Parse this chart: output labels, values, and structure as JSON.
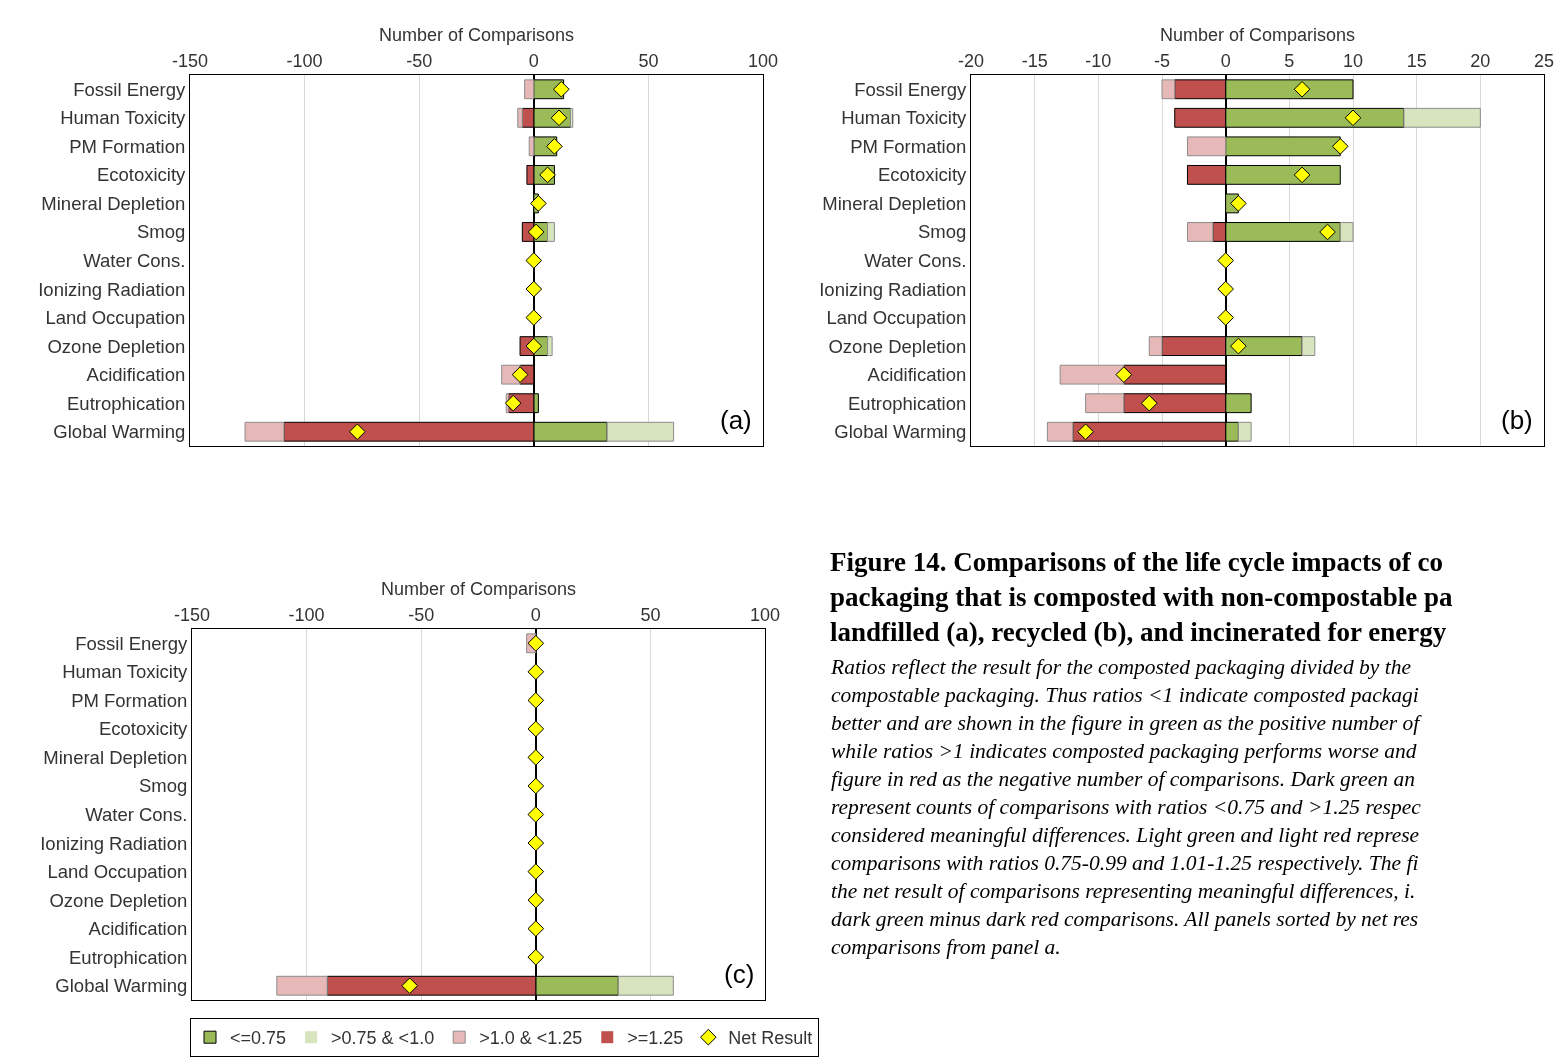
{
  "chart_data": [
    {
      "type": "bar",
      "orientation": "horizontal",
      "stacked": true,
      "xlabel": "Number of Comparisons",
      "xlim": [
        -150,
        100
      ],
      "xticks": [
        -150,
        -100,
        -50,
        0,
        50,
        100
      ],
      "grid": "x",
      "annotations": [
        "(a)"
      ],
      "legend": "bottom",
      "categories": [
        "Fossil Energy",
        "Human Toxicity",
        "PM Formation",
        "Ecotoxicity",
        "Mineral Depletion",
        "Smog",
        "Water Cons.",
        "Ionizing Radiation",
        "Land Occupation",
        "Ozone Depletion",
        "Acidification",
        "Eutrophication",
        "Global Warming"
      ],
      "series": [
        {
          "name": "<=0.75",
          "color": "#9bbb59",
          "values": [
            13,
            16,
            10,
            9,
            2,
            6,
            0,
            0,
            0,
            6,
            0,
            2,
            32
          ]
        },
        {
          "name": ">0.75 & <1.0",
          "color": "#d7e4bd",
          "values": [
            0,
            1,
            0,
            0,
            0,
            3,
            0,
            0,
            0,
            2,
            0,
            0,
            29
          ]
        },
        {
          "name": ">=1.25",
          "color": "#c0504d",
          "values": [
            0,
            -5,
            0,
            -3,
            0,
            -5,
            0,
            0,
            0,
            -6,
            -6,
            -11,
            -109
          ]
        },
        {
          "name": ">1.0 & <1.25",
          "color": "#e6b9b8",
          "values": [
            -4,
            -2,
            -2,
            0,
            0,
            0,
            0,
            0,
            0,
            0,
            -8,
            -1,
            -17
          ]
        },
        {
          "name": "Net Result",
          "type": "scatter",
          "marker": "diamond",
          "color": "#ffff00",
          "values": [
            12,
            11,
            9,
            6,
            2,
            1,
            0,
            0,
            0,
            0,
            -6,
            -9,
            -77
          ]
        }
      ]
    },
    {
      "type": "bar",
      "orientation": "horizontal",
      "stacked": true,
      "xlabel": "Number of Comparisons",
      "xlim": [
        -20,
        25
      ],
      "xticks": [
        -20,
        -15,
        -10,
        -5,
        0,
        5,
        10,
        15,
        20,
        25
      ],
      "grid": "x",
      "annotations": [
        "(b)"
      ],
      "categories": [
        "Fossil Energy",
        "Human Toxicity",
        "PM Formation",
        "Ecotoxicity",
        "Mineral Depletion",
        "Smog",
        "Water Cons.",
        "Ionizing Radiation",
        "Land Occupation",
        "Ozone Depletion",
        "Acidification",
        "Eutrophication",
        "Global Warming"
      ],
      "series": [
        {
          "color": "#9bbb59",
          "values": [
            10,
            14,
            9,
            9,
            1,
            9,
            0,
            0,
            0,
            6,
            0,
            2,
            1
          ]
        },
        {
          "color": "#d7e4bd",
          "values": [
            0,
            6,
            0,
            0,
            0,
            1,
            0,
            0,
            0,
            1,
            0,
            0,
            1
          ]
        },
        {
          "color": "#c0504d",
          "values": [
            -4,
            -4,
            0,
            -3,
            0,
            -1,
            0,
            0,
            0,
            -5,
            -8,
            -8,
            -12
          ]
        },
        {
          "color": "#e6b9b8",
          "values": [
            -1,
            0,
            -3,
            0,
            0,
            -2,
            0,
            0,
            0,
            -1,
            -5,
            -3,
            -2
          ]
        },
        {
          "type": "scatter",
          "marker": "diamond",
          "color": "#ffff00",
          "values": [
            6,
            10,
            9,
            6,
            1,
            8,
            0,
            0,
            0,
            1,
            -8,
            -6,
            -11
          ]
        }
      ]
    },
    {
      "type": "bar",
      "orientation": "horizontal",
      "stacked": true,
      "xlabel": "Number of Comparisons",
      "xlim": [
        -150,
        100
      ],
      "xticks": [
        -150,
        -100,
        -50,
        0,
        50,
        100
      ],
      "grid": "x",
      "annotations": [
        "(c)"
      ],
      "categories": [
        "Fossil Energy",
        "Human Toxicity",
        "PM Formation",
        "Ecotoxicity",
        "Mineral Depletion",
        "Smog",
        "Water Cons.",
        "Ionizing Radiation",
        "Land Occupation",
        "Ozone Depletion",
        "Acidification",
        "Eutrophication",
        "Global Warming"
      ],
      "series": [
        {
          "color": "#9bbb59",
          "values": [
            0,
            0,
            0,
            0,
            0,
            0,
            0,
            0,
            0,
            0,
            0,
            0,
            36
          ]
        },
        {
          "color": "#d7e4bd",
          "values": [
            0,
            0,
            0,
            0,
            0,
            0,
            0,
            0,
            0,
            0,
            0,
            0,
            24
          ]
        },
        {
          "color": "#c0504d",
          "values": [
            0,
            0,
            0,
            0,
            0,
            0,
            0,
            0,
            0,
            0,
            0,
            0,
            -91
          ]
        },
        {
          "color": "#e6b9b8",
          "values": [
            -4,
            0,
            0,
            0,
            0,
            0,
            0,
            0,
            0,
            0,
            0,
            0,
            -22
          ]
        },
        {
          "type": "scatter",
          "marker": "diamond",
          "color": "#ffff00",
          "values": [
            0,
            0,
            0,
            0,
            0,
            0,
            0,
            0,
            0,
            0,
            0,
            0,
            -55
          ]
        }
      ]
    },
    {
      "type": "other",
      "title": "Figure 14. Comparisons of the life cycle impacts of co\npackaging that is composted with non-compostable pa\nlandfilled (a), recycled (b), and incinerated for energy",
      "annotations": [
        "Ratios reflect the result for the composted packaging divided by the\ncompostable packaging. Thus ratios <1 indicate composted packagi\nbetter and are shown in the figure in green as the positive number of\nwhile ratios >1 indicates composted packaging performs worse and\nfigure in red as the negative number of comparisons. Dark green an\nrepresent counts of comparisons with ratios <0.75 and >1.25 respec\nconsidered meaningful differences. Light green and light red represe\ncomparisons with ratios 0.75-0.99 and 1.01-1.25 respectively. The fi\nthe net result of comparisons representing meaningful differences, i.\ndark green minus dark red comparisons. All panels sorted by net res\ncomparisons from panel a."
      ]
    }
  ]
}
